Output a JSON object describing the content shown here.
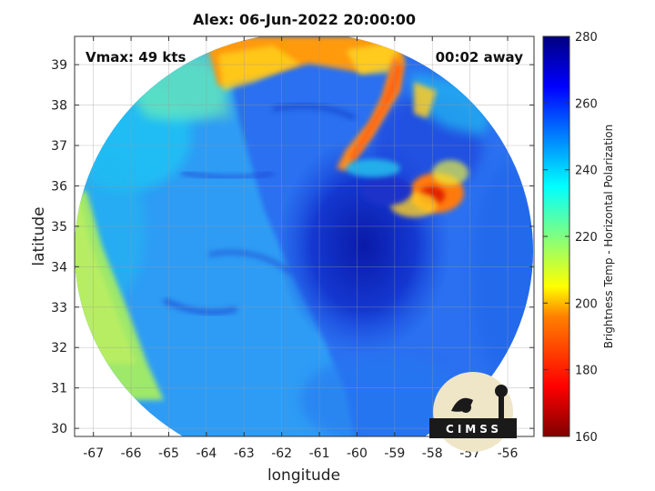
{
  "plot": {
    "title": "Alex: 06-Jun-2022 20:00:00",
    "vmax_text": "Vmax: 49 kts",
    "away_text": "00:02 away",
    "xlabel": "longitude",
    "ylabel": "latitude",
    "xticks": [
      "-67",
      "-66",
      "-65",
      "-64",
      "-63",
      "-62",
      "-61",
      "-60",
      "-59",
      "-58",
      "-57",
      "-56"
    ],
    "yticks": [
      "39",
      "38",
      "37",
      "36",
      "35",
      "34",
      "33",
      "32",
      "31",
      "30"
    ],
    "xrange": [
      -67.5,
      -55.3
    ],
    "yrange": [
      29.8,
      39.7
    ],
    "grid": true
  },
  "colorbar": {
    "label": "Brightness Temp - Horizontal Polarization",
    "ticks": [
      "280",
      "260",
      "240",
      "220",
      "200",
      "180",
      "160"
    ],
    "range": [
      160,
      280
    ],
    "colormap": [
      "#800000",
      "#ff0000",
      "#ff8000",
      "#ffff00",
      "#80ff80",
      "#00ffff",
      "#0080ff",
      "#0000ff",
      "#000080"
    ]
  },
  "logo": {
    "text": "CIMSS"
  }
}
